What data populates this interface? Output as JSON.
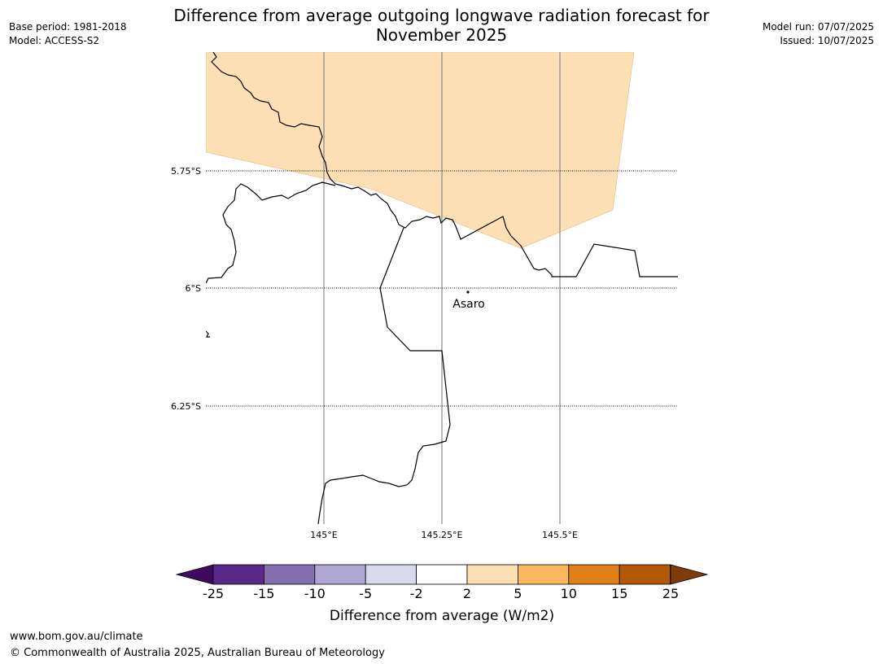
{
  "header": {
    "title_line1": "Difference from average outgoing longwave radiation forecast for",
    "title_line2": "November 2025",
    "base_period": "Base period: 1981-2018",
    "model": "Model: ACCESS-S2",
    "model_run": "Model run: 07/07/2025",
    "issued": "Issued: 10/07/2025"
  },
  "map": {
    "lat_labels": [
      "5.75°S",
      "6°S",
      "6.25°S"
    ],
    "lon_labels": [
      "145°E",
      "145.25°E",
      "145.5°E"
    ],
    "places": [
      {
        "name": "Asaro"
      }
    ],
    "anomaly_fill_color": "#fddfb5"
  },
  "colorbar": {
    "label": "Difference from average (W/m2)",
    "ticks": [
      "-25",
      "-15",
      "-10",
      "-5",
      "-2",
      "2",
      "5",
      "10",
      "15",
      "25"
    ],
    "colors": [
      "#3f0a5e",
      "#5a2a8a",
      "#8470ae",
      "#b0a8d2",
      "#d9d9ec",
      "#ffffff",
      "#fddfb5",
      "#fbb660",
      "#e0801a",
      "#b35806",
      "#7f3b08"
    ]
  },
  "footer": {
    "url": "www.bom.gov.au/climate",
    "copyright": "© Commonwealth of Australia 2025, Australian Bureau of Meteorology"
  }
}
